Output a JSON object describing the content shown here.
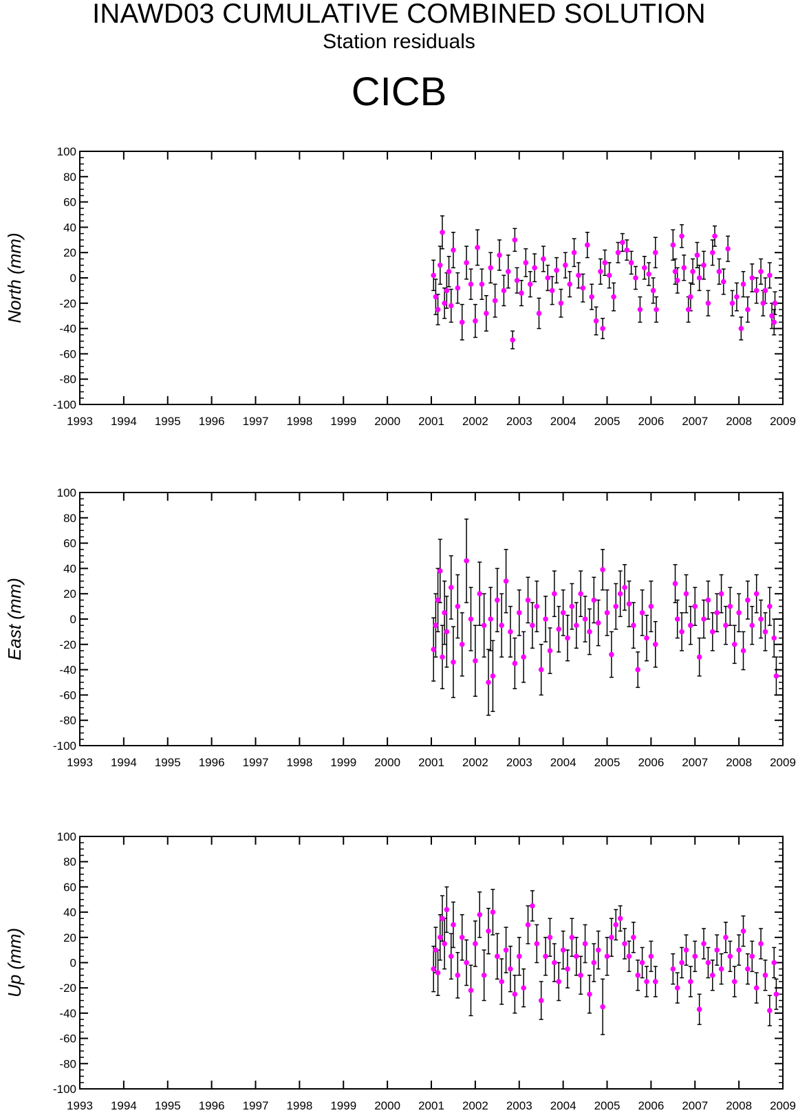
{
  "title": "INAWD03 CUMULATIVE COMBINED SOLUTION",
  "subtitle": "Station residuals",
  "station": "CICB",
  "colors": {
    "point": "#ff00ff",
    "errorbar": "#000000",
    "axis": "#000000"
  },
  "chart_data": [
    {
      "type": "scatter",
      "name": "north",
      "ylabel": "North (mm)",
      "xlim": [
        1993,
        2009
      ],
      "ylim": [
        -100,
        100
      ],
      "xticks": [
        "1993",
        "1994",
        "1995",
        "1996",
        "1997",
        "1998",
        "1999",
        "2000",
        "2001",
        "2002",
        "2003",
        "2004",
        "2005",
        "2006",
        "2007",
        "2008",
        "2009"
      ],
      "yticks": [
        "100",
        "80",
        "60",
        "40",
        "20",
        "0",
        "-20",
        "-40",
        "-60",
        "-80",
        "-100"
      ],
      "grid": false,
      "points": [
        [
          2001.05,
          2,
          12
        ],
        [
          2001.1,
          -15,
          14
        ],
        [
          2001.15,
          -25,
          12
        ],
        [
          2001.2,
          10,
          15
        ],
        [
          2001.25,
          36,
          13
        ],
        [
          2001.3,
          -20,
          12
        ],
        [
          2001.35,
          -10,
          14
        ],
        [
          2001.4,
          5,
          12
        ],
        [
          2001.45,
          -22,
          13
        ],
        [
          2001.5,
          22,
          14
        ],
        [
          2001.6,
          -8,
          12
        ],
        [
          2001.7,
          -35,
          14
        ],
        [
          2001.8,
          12,
          13
        ],
        [
          2001.9,
          -5,
          12
        ],
        [
          2002.0,
          -34,
          13
        ],
        [
          2002.05,
          24,
          14
        ],
        [
          2002.15,
          -5,
          12
        ],
        [
          2002.25,
          -28,
          14
        ],
        [
          2002.35,
          8,
          12
        ],
        [
          2002.45,
          -18,
          13
        ],
        [
          2002.55,
          18,
          12
        ],
        [
          2002.65,
          -10,
          12
        ],
        [
          2002.75,
          5,
          13
        ],
        [
          2002.85,
          -49,
          7
        ],
        [
          2002.9,
          30,
          9
        ],
        [
          2002.95,
          -2,
          10
        ],
        [
          2003.05,
          -12,
          10
        ],
        [
          2003.15,
          12,
          11
        ],
        [
          2003.25,
          -5,
          10
        ],
        [
          2003.35,
          8,
          11
        ],
        [
          2003.45,
          -28,
          12
        ],
        [
          2003.55,
          15,
          10
        ],
        [
          2003.65,
          0,
          10
        ],
        [
          2003.75,
          -10,
          11
        ],
        [
          2003.85,
          6,
          10
        ],
        [
          2003.95,
          -20,
          11
        ],
        [
          2004.05,
          10,
          10
        ],
        [
          2004.15,
          -5,
          10
        ],
        [
          2004.25,
          20,
          11
        ],
        [
          2004.35,
          2,
          10
        ],
        [
          2004.45,
          -8,
          11
        ],
        [
          2004.55,
          26,
          10
        ],
        [
          2004.65,
          -15,
          10
        ],
        [
          2004.75,
          -34,
          11
        ],
        [
          2004.85,
          5,
          10
        ],
        [
          2004.9,
          -40,
          8
        ],
        [
          2004.95,
          12,
          10
        ],
        [
          2005.05,
          2,
          10
        ],
        [
          2005.15,
          -15,
          11
        ],
        [
          2005.25,
          20,
          8
        ],
        [
          2005.35,
          28,
          7
        ],
        [
          2005.45,
          22,
          8
        ],
        [
          2005.55,
          12,
          9
        ],
        [
          2005.65,
          0,
          9
        ],
        [
          2005.75,
          -25,
          10
        ],
        [
          2005.85,
          8,
          9
        ],
        [
          2005.95,
          3,
          9
        ],
        [
          2006.05,
          -10,
          10
        ],
        [
          2006.1,
          20,
          12
        ],
        [
          2006.12,
          -25,
          10
        ],
        [
          2006.5,
          26,
          12
        ],
        [
          2006.55,
          5,
          10
        ],
        [
          2006.6,
          -2,
          10
        ],
        [
          2006.7,
          33,
          9
        ],
        [
          2006.75,
          8,
          10
        ],
        [
          2006.85,
          -25,
          10
        ],
        [
          2006.9,
          -15,
          11
        ],
        [
          2006.95,
          5,
          10
        ],
        [
          2007.05,
          18,
          10
        ],
        [
          2007.1,
          0,
          10
        ],
        [
          2007.2,
          10,
          11
        ],
        [
          2007.3,
          -20,
          10
        ],
        [
          2007.4,
          20,
          10
        ],
        [
          2007.45,
          33,
          8
        ],
        [
          2007.55,
          5,
          10
        ],
        [
          2007.65,
          -3,
          10
        ],
        [
          2007.75,
          23,
          10
        ],
        [
          2007.85,
          -20,
          10
        ],
        [
          2007.95,
          -15,
          11
        ],
        [
          2008.05,
          -40,
          9
        ],
        [
          2008.1,
          -5,
          10
        ],
        [
          2008.2,
          -25,
          10
        ],
        [
          2008.3,
          0,
          11
        ],
        [
          2008.4,
          -10,
          10
        ],
        [
          2008.5,
          5,
          10
        ],
        [
          2008.55,
          -20,
          10
        ],
        [
          2008.6,
          -10,
          10
        ],
        [
          2008.7,
          2,
          10
        ],
        [
          2008.75,
          -30,
          10
        ],
        [
          2008.8,
          -35,
          10
        ],
        [
          2008.82,
          -20,
          9
        ]
      ]
    },
    {
      "type": "scatter",
      "name": "east",
      "ylabel": "East (mm)",
      "xlim": [
        1993,
        2009
      ],
      "ylim": [
        -100,
        100
      ],
      "xticks": [
        "1993",
        "1994",
        "1995",
        "1996",
        "1997",
        "1998",
        "1999",
        "2000",
        "2001",
        "2002",
        "2003",
        "2004",
        "2005",
        "2006",
        "2007",
        "2008",
        "2009"
      ],
      "yticks": [
        "100",
        "80",
        "60",
        "40",
        "20",
        "0",
        "-20",
        "-40",
        "-60",
        "-80",
        "-100"
      ],
      "grid": false,
      "points": [
        [
          2001.05,
          -24,
          25
        ],
        [
          2001.1,
          -5,
          25
        ],
        [
          2001.15,
          15,
          25
        ],
        [
          2001.2,
          38,
          25
        ],
        [
          2001.25,
          -30,
          25
        ],
        [
          2001.3,
          5,
          25
        ],
        [
          2001.35,
          -10,
          28
        ],
        [
          2001.45,
          25,
          25
        ],
        [
          2001.5,
          -34,
          28
        ],
        [
          2001.6,
          10,
          25
        ],
        [
          2001.7,
          -20,
          25
        ],
        [
          2001.8,
          46,
          33
        ],
        [
          2001.9,
          0,
          25
        ],
        [
          2002.0,
          -33,
          28
        ],
        [
          2002.1,
          20,
          25
        ],
        [
          2002.2,
          -5,
          25
        ],
        [
          2002.3,
          -50,
          26
        ],
        [
          2002.35,
          0,
          25
        ],
        [
          2002.4,
          -45,
          28
        ],
        [
          2002.5,
          15,
          25
        ],
        [
          2002.6,
          -5,
          25
        ],
        [
          2002.7,
          30,
          25
        ],
        [
          2002.8,
          -10,
          20
        ],
        [
          2002.9,
          -35,
          20
        ],
        [
          2003.0,
          5,
          18
        ],
        [
          2003.1,
          -30,
          20
        ],
        [
          2003.2,
          15,
          18
        ],
        [
          2003.3,
          -5,
          18
        ],
        [
          2003.4,
          10,
          20
        ],
        [
          2003.5,
          -40,
          20
        ],
        [
          2003.6,
          0,
          18
        ],
        [
          2003.7,
          -25,
          18
        ],
        [
          2003.8,
          20,
          18
        ],
        [
          2003.9,
          -8,
          18
        ],
        [
          2004.0,
          5,
          18
        ],
        [
          2004.1,
          -15,
          18
        ],
        [
          2004.2,
          10,
          18
        ],
        [
          2004.3,
          -5,
          18
        ],
        [
          2004.4,
          20,
          18
        ],
        [
          2004.5,
          0,
          18
        ],
        [
          2004.6,
          -10,
          18
        ],
        [
          2004.7,
          15,
          18
        ],
        [
          2004.8,
          -3,
          18
        ],
        [
          2004.9,
          39,
          16
        ],
        [
          2005.0,
          5,
          18
        ],
        [
          2005.1,
          -28,
          18
        ],
        [
          2005.2,
          10,
          18
        ],
        [
          2005.3,
          20,
          18
        ],
        [
          2005.4,
          25,
          18
        ],
        [
          2005.5,
          12,
          18
        ],
        [
          2005.6,
          -5,
          18
        ],
        [
          2005.7,
          -40,
          14
        ],
        [
          2005.8,
          5,
          18
        ],
        [
          2005.9,
          -15,
          18
        ],
        [
          2006.0,
          10,
          20
        ],
        [
          2006.1,
          -20,
          18
        ],
        [
          2006.55,
          28,
          15
        ],
        [
          2006.6,
          0,
          15
        ],
        [
          2006.7,
          -10,
          15
        ],
        [
          2006.8,
          20,
          15
        ],
        [
          2006.9,
          -5,
          15
        ],
        [
          2007.0,
          10,
          15
        ],
        [
          2007.1,
          -30,
          15
        ],
        [
          2007.2,
          0,
          15
        ],
        [
          2007.3,
          15,
          15
        ],
        [
          2007.4,
          -10,
          15
        ],
        [
          2007.5,
          5,
          15
        ],
        [
          2007.6,
          20,
          15
        ],
        [
          2007.7,
          -5,
          15
        ],
        [
          2007.8,
          10,
          15
        ],
        [
          2007.9,
          -20,
          15
        ],
        [
          2008.0,
          5,
          15
        ],
        [
          2008.1,
          -25,
          15
        ],
        [
          2008.2,
          15,
          15
        ],
        [
          2008.3,
          -5,
          15
        ],
        [
          2008.4,
          20,
          15
        ],
        [
          2008.5,
          0,
          15
        ],
        [
          2008.6,
          -10,
          15
        ],
        [
          2008.7,
          10,
          15
        ],
        [
          2008.8,
          -15,
          15
        ],
        [
          2008.85,
          -45,
          15
        ]
      ]
    },
    {
      "type": "scatter",
      "name": "up",
      "ylabel": "Up (mm)",
      "xlim": [
        1993,
        2009
      ],
      "ylim": [
        -100,
        100
      ],
      "xticks": [
        "1993",
        "1994",
        "1995",
        "1996",
        "1997",
        "1998",
        "1999",
        "2000",
        "2001",
        "2002",
        "2003",
        "2004",
        "2005",
        "2006",
        "2007",
        "2008",
        "2009"
      ],
      "yticks": [
        "100",
        "80",
        "60",
        "40",
        "20",
        "0",
        "-20",
        "-40",
        "-60",
        "-80",
        "-100"
      ],
      "grid": false,
      "points": [
        [
          2001.05,
          -5,
          18
        ],
        [
          2001.1,
          10,
          18
        ],
        [
          2001.15,
          -8,
          18
        ],
        [
          2001.2,
          20,
          18
        ],
        [
          2001.25,
          35,
          18
        ],
        [
          2001.3,
          15,
          20
        ],
        [
          2001.35,
          42,
          18
        ],
        [
          2001.45,
          5,
          18
        ],
        [
          2001.5,
          30,
          18
        ],
        [
          2001.6,
          -10,
          18
        ],
        [
          2001.7,
          20,
          18
        ],
        [
          2001.8,
          0,
          18
        ],
        [
          2001.9,
          -22,
          20
        ],
        [
          2002.0,
          15,
          18
        ],
        [
          2002.1,
          38,
          18
        ],
        [
          2002.2,
          -10,
          20
        ],
        [
          2002.3,
          25,
          18
        ],
        [
          2002.4,
          40,
          18
        ],
        [
          2002.5,
          5,
          18
        ],
        [
          2002.6,
          -15,
          18
        ],
        [
          2002.7,
          10,
          18
        ],
        [
          2002.8,
          -5,
          18
        ],
        [
          2002.9,
          -25,
          15
        ],
        [
          2003.0,
          5,
          15
        ],
        [
          2003.1,
          -20,
          15
        ],
        [
          2003.2,
          30,
          15
        ],
        [
          2003.3,
          45,
          12
        ],
        [
          2003.4,
          15,
          15
        ],
        [
          2003.5,
          -30,
          15
        ],
        [
          2003.6,
          5,
          15
        ],
        [
          2003.7,
          20,
          15
        ],
        [
          2003.8,
          0,
          15
        ],
        [
          2003.9,
          -15,
          15
        ],
        [
          2004.0,
          10,
          15
        ],
        [
          2004.1,
          -5,
          15
        ],
        [
          2004.2,
          20,
          15
        ],
        [
          2004.3,
          5,
          15
        ],
        [
          2004.4,
          -10,
          15
        ],
        [
          2004.5,
          15,
          15
        ],
        [
          2004.6,
          -25,
          15
        ],
        [
          2004.7,
          0,
          15
        ],
        [
          2004.8,
          10,
          15
        ],
        [
          2004.9,
          -35,
          22
        ],
        [
          2005.0,
          5,
          15
        ],
        [
          2005.1,
          20,
          15
        ],
        [
          2005.2,
          30,
          12
        ],
        [
          2005.3,
          35,
          10
        ],
        [
          2005.4,
          15,
          12
        ],
        [
          2005.5,
          5,
          12
        ],
        [
          2005.6,
          20,
          12
        ],
        [
          2005.7,
          -10,
          12
        ],
        [
          2005.8,
          0,
          12
        ],
        [
          2005.9,
          -15,
          12
        ],
        [
          2006.0,
          5,
          12
        ],
        [
          2006.1,
          -15,
          12
        ],
        [
          2006.5,
          -5,
          12
        ],
        [
          2006.6,
          -20,
          12
        ],
        [
          2006.7,
          0,
          12
        ],
        [
          2006.8,
          10,
          12
        ],
        [
          2006.9,
          -15,
          12
        ],
        [
          2007.0,
          5,
          12
        ],
        [
          2007.1,
          -37,
          12
        ],
        [
          2007.2,
          15,
          12
        ],
        [
          2007.3,
          0,
          12
        ],
        [
          2007.4,
          -10,
          12
        ],
        [
          2007.5,
          10,
          12
        ],
        [
          2007.6,
          -5,
          12
        ],
        [
          2007.7,
          20,
          12
        ],
        [
          2007.8,
          5,
          12
        ],
        [
          2007.9,
          -15,
          12
        ],
        [
          2008.0,
          10,
          12
        ],
        [
          2008.1,
          25,
          12
        ],
        [
          2008.2,
          -5,
          12
        ],
        [
          2008.3,
          5,
          12
        ],
        [
          2008.4,
          -20,
          12
        ],
        [
          2008.5,
          15,
          12
        ],
        [
          2008.6,
          -10,
          12
        ],
        [
          2008.7,
          -38,
          12
        ],
        [
          2008.8,
          0,
          12
        ],
        [
          2008.85,
          -25,
          12
        ]
      ]
    }
  ]
}
